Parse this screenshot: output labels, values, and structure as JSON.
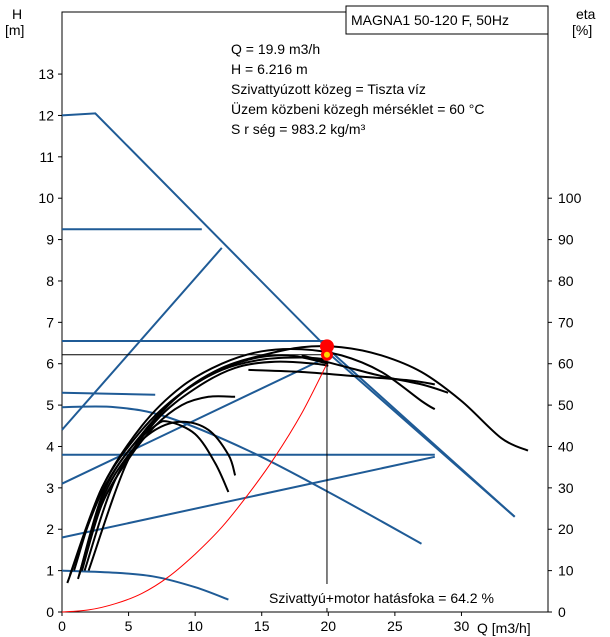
{
  "chart_data": {
    "type": "line",
    "title": "MAGNA1 50-120 F, 50Hz",
    "left_axis": {
      "label_line1": "H",
      "label_line2": "[m]",
      "ticks": [
        0,
        1,
        2,
        3,
        4,
        5,
        6,
        7,
        8,
        9,
        10,
        11,
        12,
        13
      ],
      "ylim": [
        0,
        14.5
      ]
    },
    "right_axis": {
      "label_line1": "eta",
      "label_line2": "[%]",
      "ticks": [
        0,
        10,
        20,
        30,
        40,
        50,
        60,
        70,
        80,
        90,
        100
      ],
      "ylim": [
        0,
        145
      ]
    },
    "x_axis": {
      "label": "Q [m3/h]",
      "ticks": [
        0,
        5,
        10,
        15,
        20,
        25,
        30
      ],
      "xlim": [
        0,
        36.5
      ]
    },
    "grid": false,
    "info_lines": [
      "Q = 19.9 m3/h",
      "H = 6.216 m",
      "Szivattyúzott közeg = Tiszta víz",
      "Üzem közbeni közegh  mérséklet = 60 °C",
      "S  r  ség = 983.2 kg/m³"
    ],
    "efficiency_note": "Szivattyú+motor hatásfoka = 64.2 %",
    "duty_point": {
      "q": 19.9,
      "h": 6.216,
      "eta": 64.2
    },
    "colors": {
      "pump_curves": "#000000",
      "control_curves": "#1f5b96",
      "system_curve": "#ff0000",
      "duty_marker": "#ff0000",
      "duty_marker_inner": "#ffd700"
    },
    "pump_curves": [
      [
        [
          0.4,
          0.7
        ],
        [
          3,
          2.9
        ],
        [
          6,
          4.3
        ],
        [
          9,
          5.3
        ],
        [
          12,
          5.9
        ],
        [
          15,
          6.2
        ],
        [
          18,
          6.4
        ],
        [
          21,
          6.4
        ],
        [
          24,
          6.2
        ],
        [
          27,
          5.8
        ],
        [
          30,
          5.1
        ],
        [
          33,
          4.2
        ],
        [
          35,
          3.9
        ]
      ],
      [
        [
          0.6,
          0.9
        ],
        [
          3,
          3.0
        ],
        [
          6,
          4.5
        ],
        [
          9,
          5.45
        ],
        [
          12,
          6.0
        ],
        [
          15,
          6.3
        ],
        [
          18,
          6.35
        ],
        [
          21,
          6.2
        ],
        [
          24,
          5.8
        ],
        [
          27,
          5.1
        ],
        [
          28,
          4.9
        ]
      ],
      [
        [
          0.9,
          1.0
        ],
        [
          3,
          3.0
        ],
        [
          6,
          4.4
        ],
        [
          9,
          5.3
        ],
        [
          12,
          5.85
        ],
        [
          15,
          6.1
        ],
        [
          18,
          6.15
        ],
        [
          20,
          6.1
        ]
      ],
      [
        [
          1.2,
          0.8
        ],
        [
          3,
          2.7
        ],
        [
          5,
          3.8
        ],
        [
          7,
          4.4
        ],
        [
          9,
          4.6
        ],
        [
          11,
          4.4
        ],
        [
          12.5,
          3.8
        ],
        [
          13,
          3.3
        ]
      ],
      [
        [
          1.3,
          0.9
        ],
        [
          3,
          2.8
        ],
        [
          5,
          3.9
        ],
        [
          7,
          4.5
        ],
        [
          8,
          4.6
        ],
        [
          10,
          4.3
        ],
        [
          11.5,
          3.6
        ],
        [
          12.5,
          2.9
        ]
      ],
      [
        [
          1.5,
          1.0
        ],
        [
          3,
          2.6
        ],
        [
          5,
          3.7
        ],
        [
          7,
          4.5
        ],
        [
          9,
          5.0
        ],
        [
          11,
          5.2
        ],
        [
          13,
          5.2
        ]
      ],
      [
        [
          1.7,
          1.0
        ],
        [
          4,
          3.2
        ],
        [
          7,
          4.6
        ],
        [
          10,
          5.4
        ],
        [
          13,
          5.9
        ],
        [
          16,
          6.05
        ],
        [
          19,
          6.0
        ],
        [
          20,
          5.95
        ]
      ],
      [
        [
          2.0,
          1.0
        ],
        [
          5,
          3.7
        ],
        [
          8,
          5.0
        ],
        [
          11,
          5.7
        ],
        [
          14,
          6.1
        ],
        [
          17,
          6.2
        ],
        [
          20,
          6.0
        ]
      ],
      [
        [
          18,
          6.2
        ],
        [
          21,
          5.95
        ],
        [
          24,
          5.7
        ],
        [
          27,
          5.5
        ],
        [
          29,
          5.3
        ]
      ],
      [
        [
          14,
          5.85
        ],
        [
          18,
          5.8
        ],
        [
          22,
          5.7
        ],
        [
          26,
          5.6
        ],
        [
          28,
          5.5
        ]
      ]
    ],
    "control_curves": [
      [
        [
          0,
          12
        ],
        [
          2.5,
          12.05
        ],
        [
          20,
          6.35
        ],
        [
          34,
          2.3
        ]
      ],
      [
        [
          0,
          9.25
        ],
        [
          10.5,
          9.25
        ]
      ],
      [
        [
          0,
          6.55
        ],
        [
          19.9,
          6.55
        ]
      ],
      [
        [
          0,
          5.3
        ],
        [
          7,
          5.25
        ]
      ],
      [
        [
          0,
          3.8
        ],
        [
          28,
          3.8
        ]
      ],
      [
        [
          0,
          3.1
        ],
        [
          20.2,
          6.2
        ],
        [
          34,
          2.3
        ]
      ],
      [
        [
          0,
          1.8
        ],
        [
          28,
          3.75
        ]
      ],
      [
        [
          0,
          4.4
        ],
        [
          12,
          8.8
        ]
      ],
      [
        [
          0,
          4.95
        ],
        [
          4,
          4.95
        ],
        [
          8,
          4.7
        ],
        [
          14,
          3.9
        ],
        [
          20,
          2.9
        ],
        [
          27,
          1.65
        ]
      ],
      [
        [
          0,
          1.0
        ],
        [
          4,
          0.95
        ],
        [
          7,
          0.85
        ],
        [
          10,
          0.6
        ],
        [
          12.5,
          0.3
        ]
      ]
    ],
    "system_curve": [
      [
        0,
        0
      ],
      [
        2,
        0.05
      ],
      [
        4,
        0.2
      ],
      [
        6,
        0.45
      ],
      [
        8,
        0.85
      ],
      [
        10,
        1.4
      ],
      [
        12,
        2.05
      ],
      [
        14,
        2.85
      ],
      [
        16,
        3.75
      ],
      [
        18,
        4.8
      ],
      [
        19.9,
        6.0
      ]
    ]
  }
}
